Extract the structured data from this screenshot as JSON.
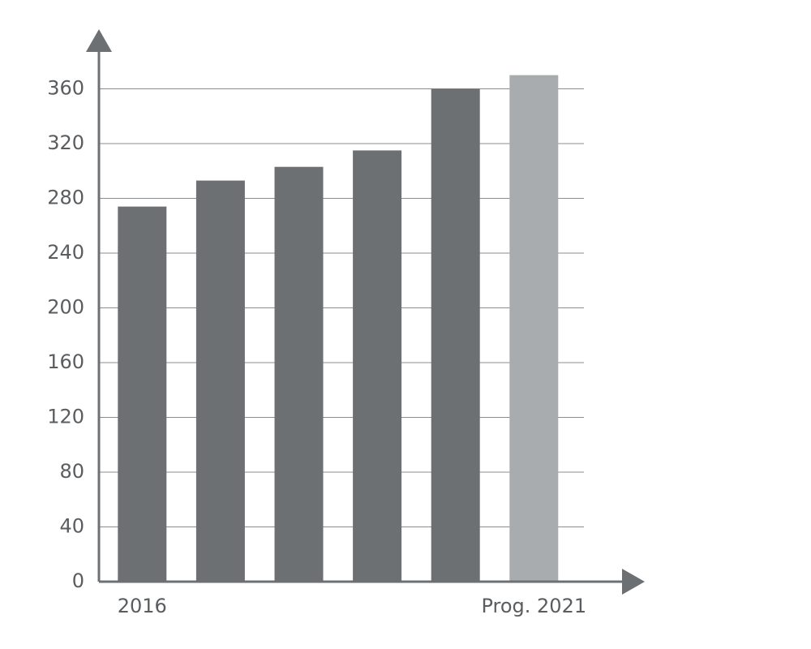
{
  "chart_data": {
    "type": "bar",
    "categories": [
      "2016",
      null,
      null,
      null,
      null,
      "Prog. 2021"
    ],
    "values": [
      274,
      293,
      303,
      315,
      360,
      370
    ],
    "colors": [
      "#6d7073",
      "#6d7073",
      "#6d7073",
      "#6d7073",
      "#6d7073",
      "#a9acaf"
    ],
    "ylim": [
      0,
      400
    ],
    "yticks": [
      0,
      40,
      80,
      120,
      160,
      200,
      240,
      280,
      320,
      360
    ],
    "grid": true
  }
}
